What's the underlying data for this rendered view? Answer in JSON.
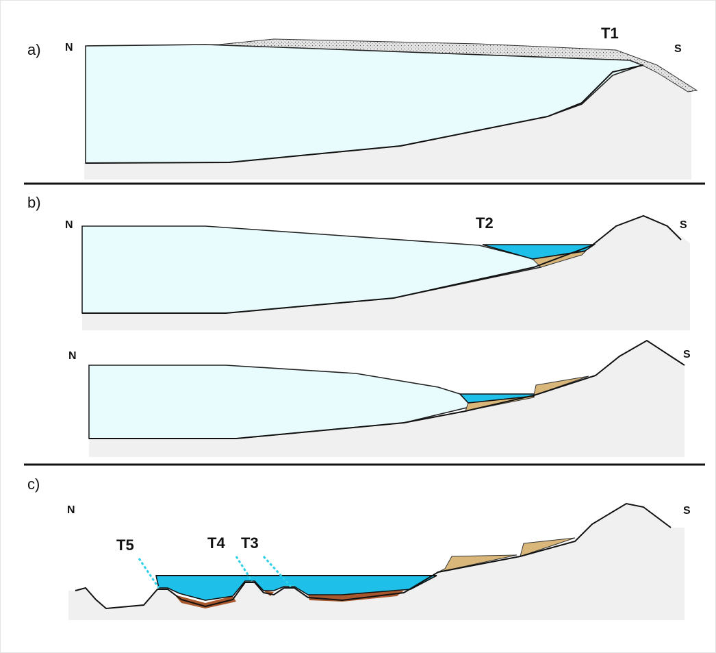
{
  "panels": [
    {
      "label": "a)",
      "north": "N",
      "south": "S",
      "terraces": [
        "T1"
      ]
    },
    {
      "label": "b)",
      "profiles": [
        {
          "north": "N",
          "south": "S",
          "terraces": [
            "T2"
          ]
        },
        {
          "north": "N",
          "south": "S"
        }
      ]
    },
    {
      "label": "c)",
      "north": "N",
      "south": "S",
      "terraces": [
        "T5",
        "T4",
        "T3"
      ]
    }
  ]
}
